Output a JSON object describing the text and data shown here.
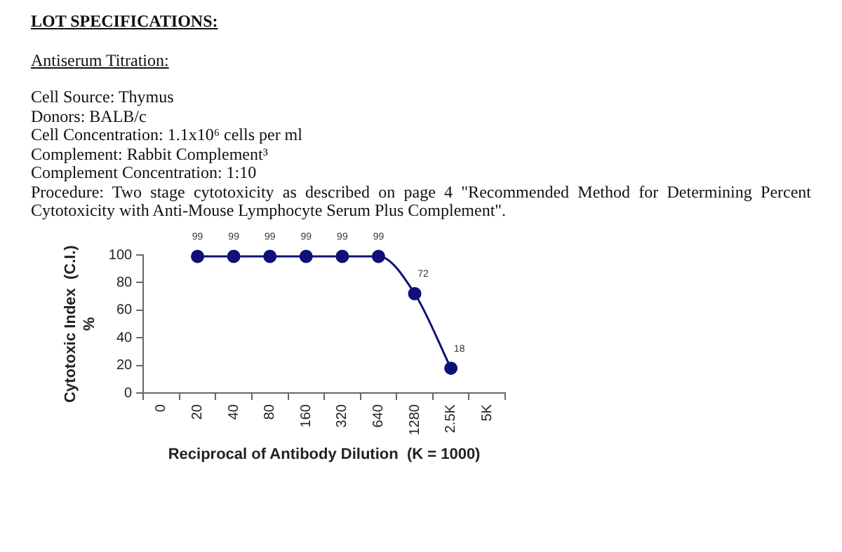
{
  "chart_data": {
    "type": "line",
    "title": "LOT SPECIFICATIONS:",
    "subtitle": "Antiserum Titration:",
    "annotations": [
      "Cell Source:  Thymus",
      "Donors:  BALB/c",
      "Cell Concentration:  1.1x10⁶ cells per ml",
      "Complement:  Rabbit Complement³",
      "Complement Concentration:  1:10",
      "Procedure:  Two stage cytotoxicity as described on page 4 \"Recommended Method for Determining Percent Cytotoxicity with Anti-Mouse Lymphocyte Serum Plus Complement\"."
    ],
    "xlabel": "Reciprocal of Antibody Dilution  (K = 1000)",
    "ylabel": "Cytotoxic Index  (C.I.)\n%",
    "categories": [
      "0",
      "20",
      "40",
      "80",
      "160",
      "320",
      "640",
      "1280",
      "2.5K",
      "5K"
    ],
    "values": [
      null,
      99,
      99,
      99,
      99,
      99,
      99,
      72,
      18,
      null
    ],
    "color": "#10107a",
    "ylim": [
      0,
      100
    ],
    "yticks": [
      0,
      20,
      40,
      60,
      80,
      100
    ],
    "grid": false,
    "legend": false,
    "marker": "circle",
    "line_style": "solid",
    "data_labels": true
  }
}
